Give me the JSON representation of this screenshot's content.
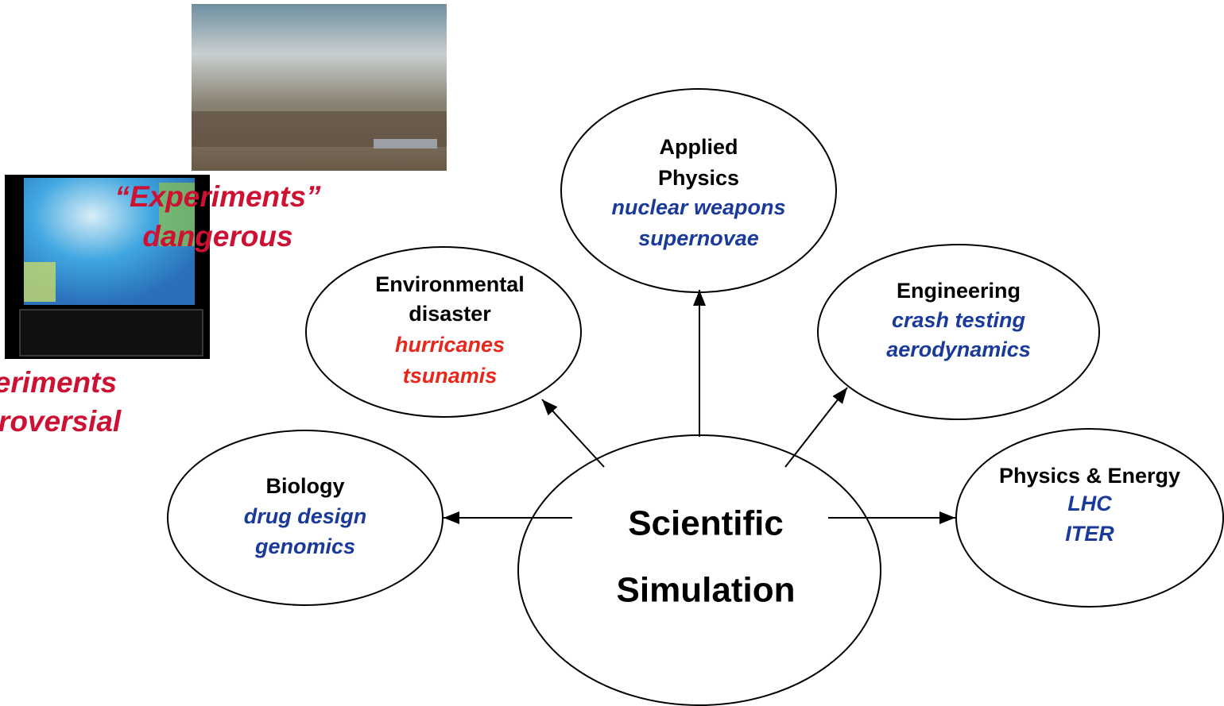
{
  "center": {
    "lines": [
      "Scientific",
      "Simulation"
    ]
  },
  "nodes": [
    {
      "title": [
        "Applied",
        "Physics"
      ],
      "items": [
        "nuclear weapons",
        "supernovae"
      ]
    },
    {
      "title": [
        "Environmental",
        "disaster"
      ],
      "items": [
        "hurricanes",
        "tsunamis"
      ]
    },
    {
      "title": [
        "Engineering"
      ],
      "items": [
        "crash testing",
        "aerodynamics"
      ]
    },
    {
      "title": [
        "Biology"
      ],
      "items": [
        "drug design",
        "genomics"
      ]
    },
    {
      "title": [
        "Physics & Energy"
      ],
      "items": [
        "LHC",
        "ITER"
      ]
    }
  ],
  "annotations": [
    {
      "lines": [
        "“Experiments”",
        "dangerous"
      ]
    },
    {
      "lines": [
        "Experiments",
        "controversial"
      ]
    }
  ]
}
